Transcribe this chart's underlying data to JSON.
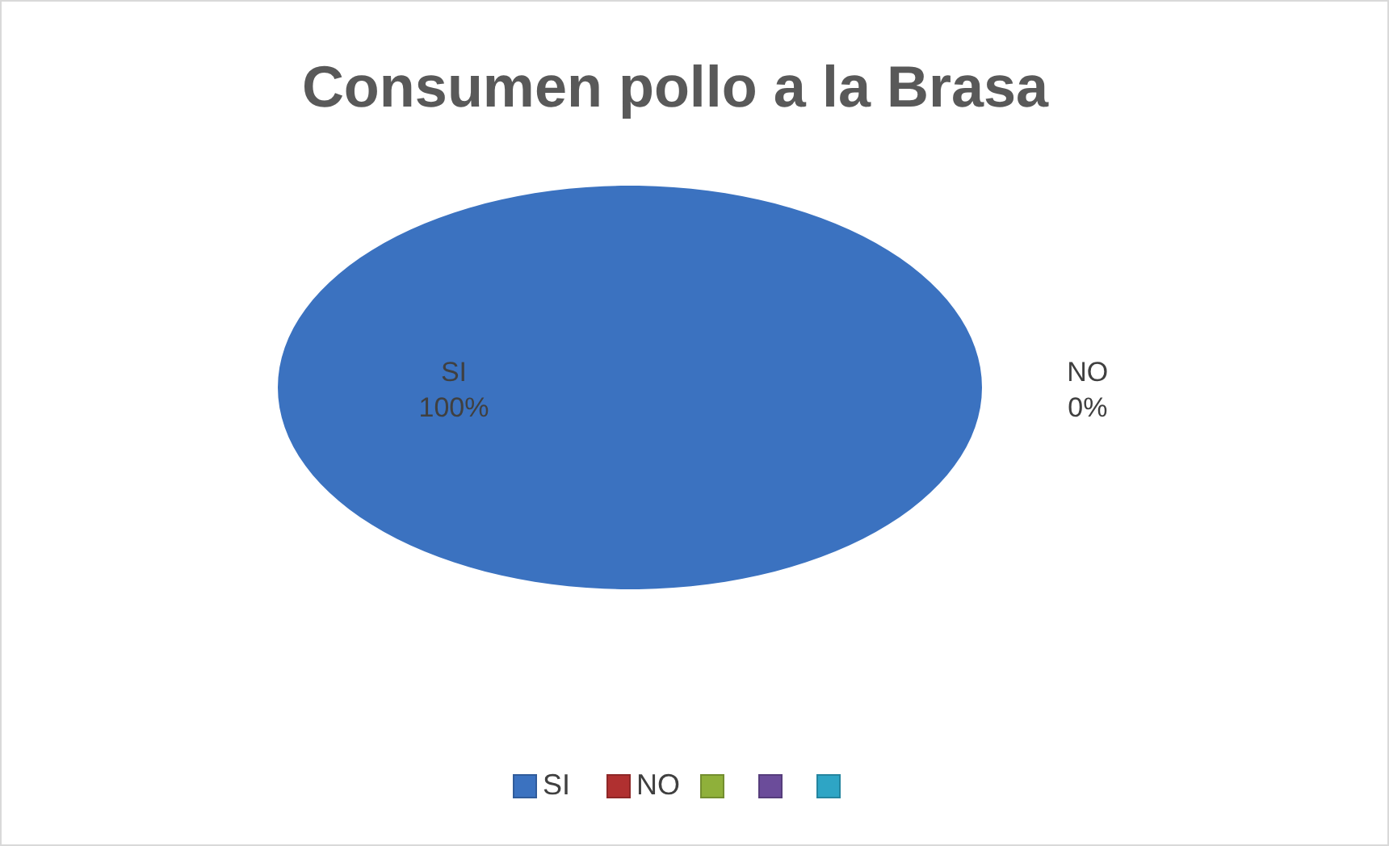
{
  "chart_data": {
    "type": "pie",
    "title": "Consumen pollo a la Brasa",
    "categories": [
      "SI",
      "NO",
      null,
      null,
      null
    ],
    "values": [
      100,
      0,
      0,
      0,
      0
    ],
    "value_labels": [
      "100%",
      "0%",
      null,
      null,
      null
    ],
    "colors": [
      "#3b72c0",
      "#b03030",
      "#8fb03a",
      "#6b4c9a",
      "#2ea5c5"
    ],
    "legend": "bottom"
  }
}
